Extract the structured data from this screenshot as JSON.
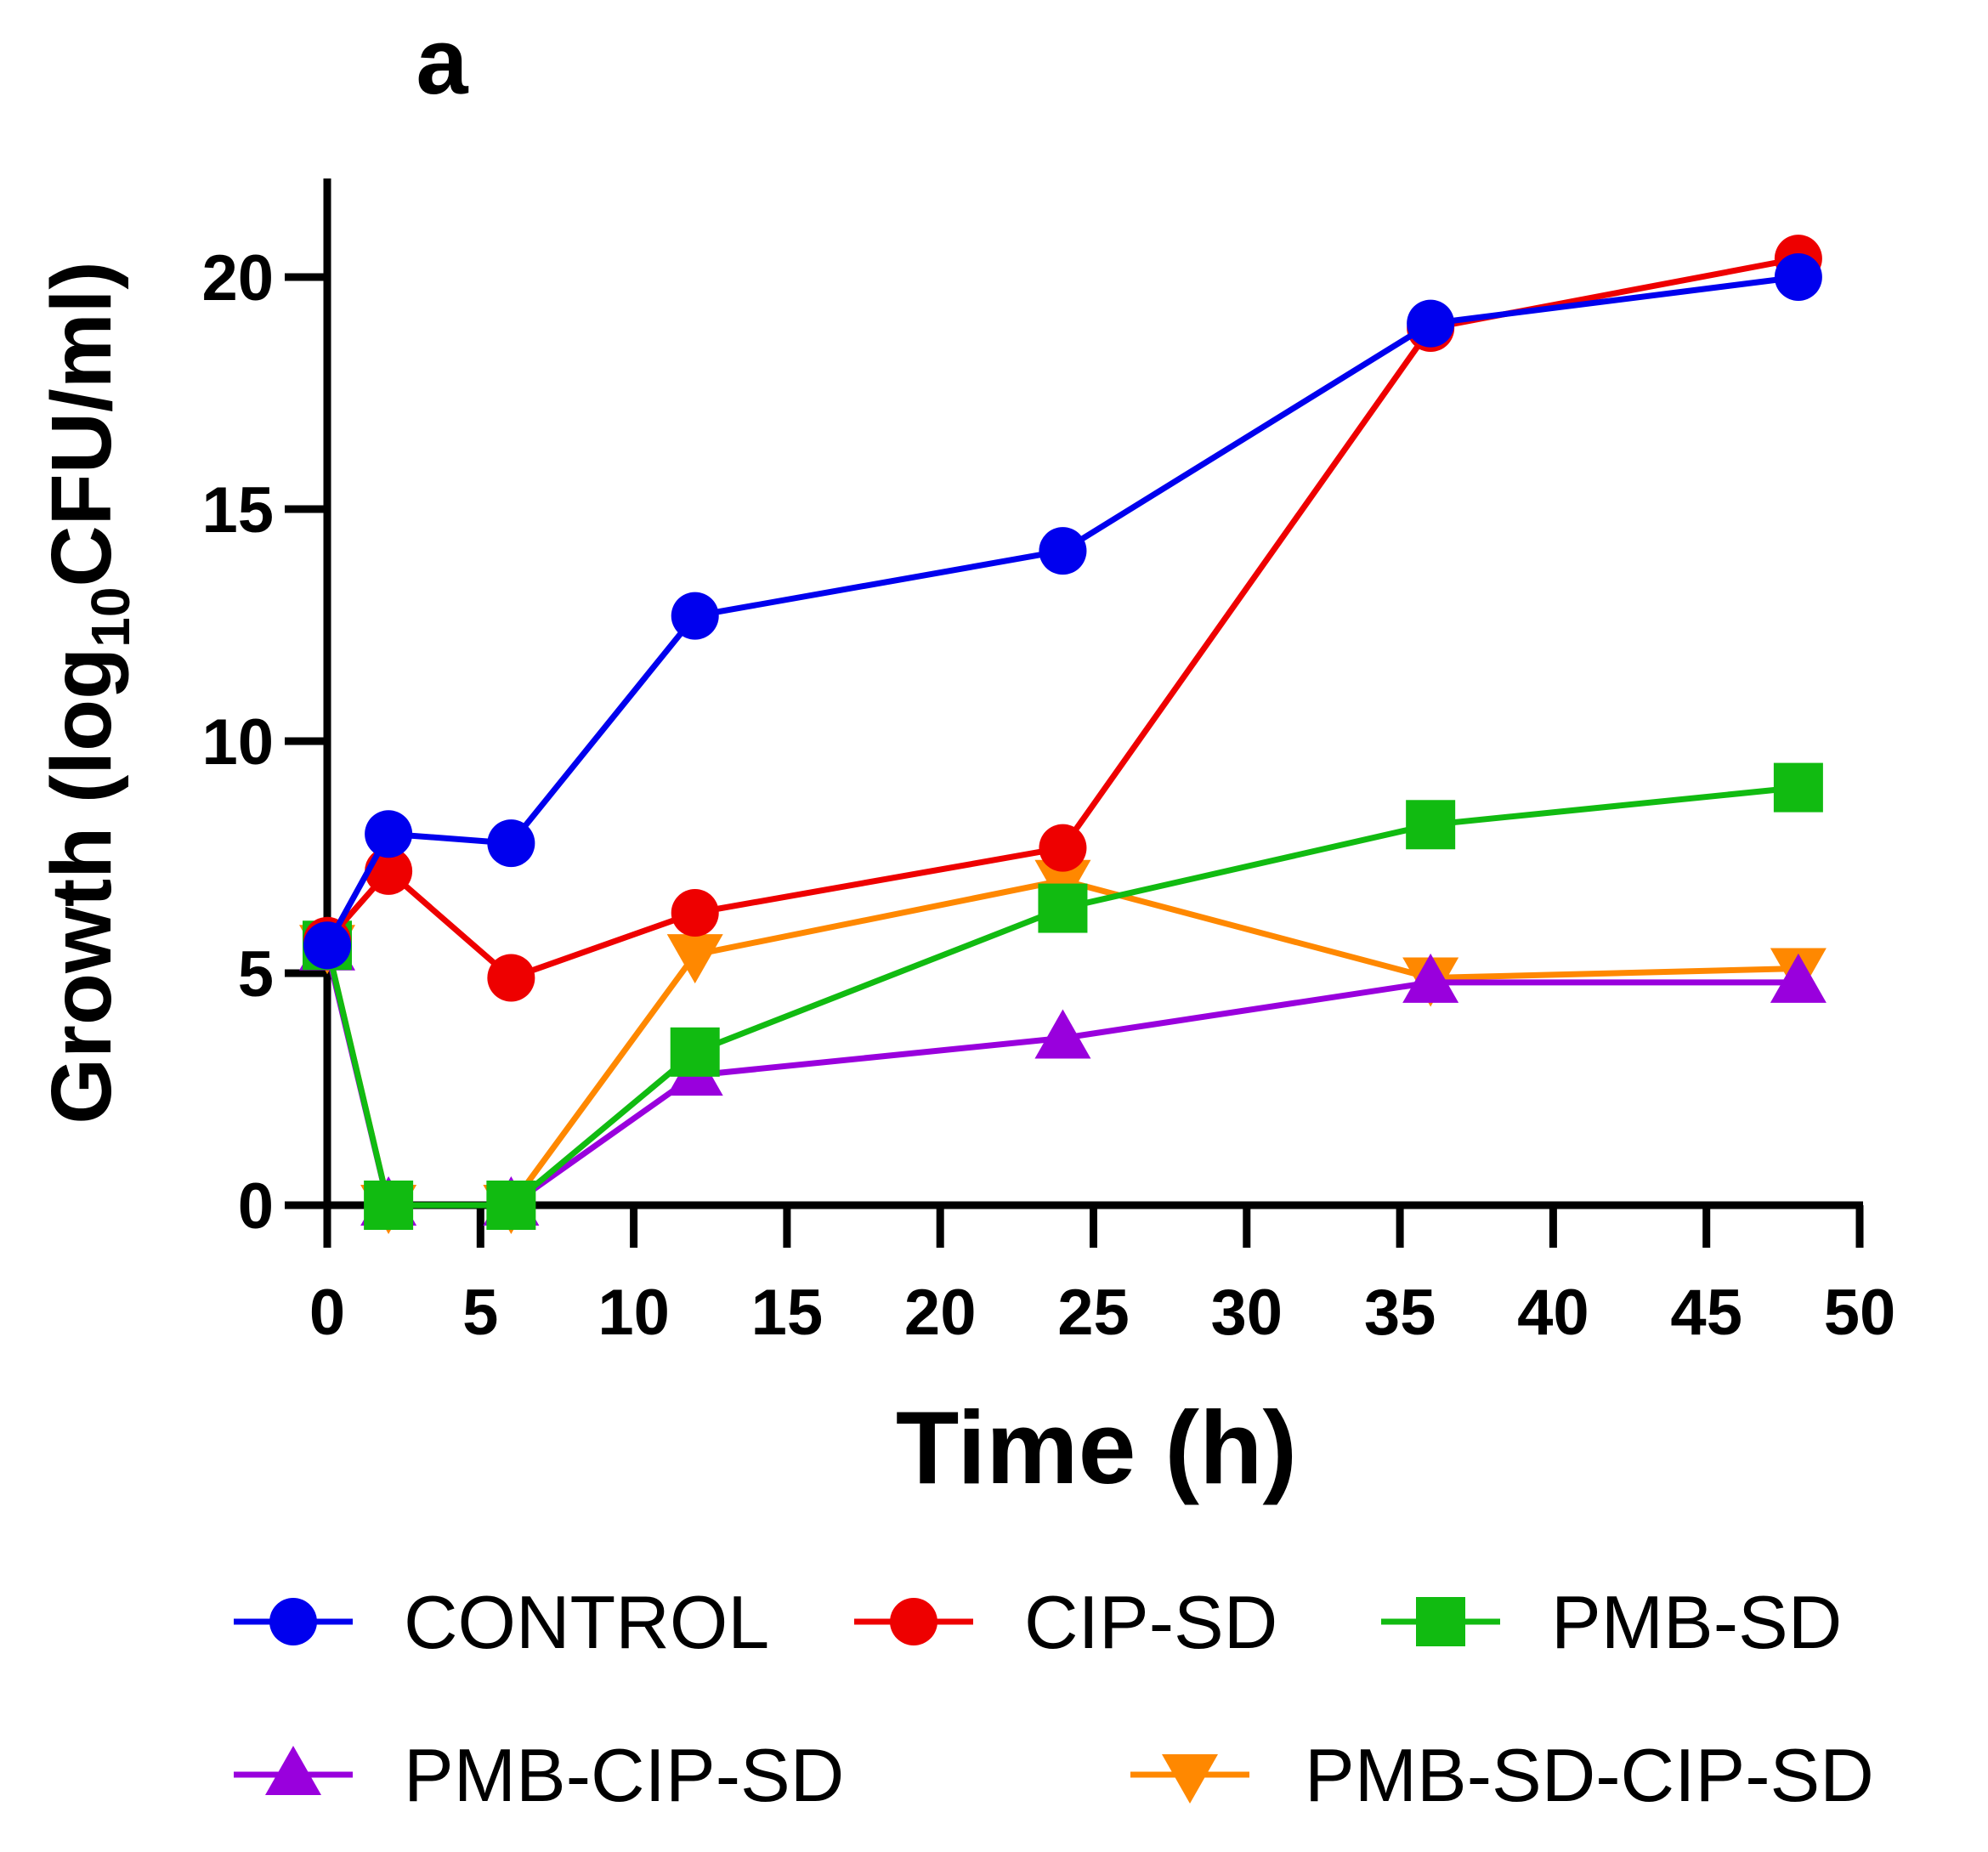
{
  "chart_data": {
    "type": "line",
    "panel_label": "a",
    "xlabel": "Time (h)",
    "ylabel_prefix": "Growth (log",
    "ylabel_subscript": "10",
    "ylabel_suffix": "CFU/ml)",
    "xlim": [
      0,
      50
    ],
    "ylim": [
      0,
      22
    ],
    "xticks": [
      0,
      5,
      10,
      15,
      20,
      25,
      30,
      35,
      40,
      45,
      50
    ],
    "yticks": [
      0,
      5,
      10,
      15,
      20
    ],
    "grid": false,
    "legend_position": "bottom",
    "x": [
      0,
      2,
      6,
      12,
      24,
      36,
      48
    ],
    "series": [
      {
        "name": "CONTROL",
        "color": "#0000ee",
        "marker": "circle",
        "values": [
          5.6,
          8.0,
          7.8,
          12.7,
          14.1,
          19.0,
          20.0
        ]
      },
      {
        "name": "CIP-SD",
        "color": "#ee0000",
        "marker": "circle",
        "values": [
          5.7,
          7.2,
          4.9,
          6.3,
          7.7,
          18.9,
          20.4
        ]
      },
      {
        "name": "PMB-SD",
        "color": "#11bb11",
        "marker": "square",
        "values": [
          5.6,
          0,
          0,
          3.3,
          6.4,
          8.2,
          9.0
        ]
      },
      {
        "name": "PMB-CIP-SD",
        "color": "#9900dd",
        "marker": "triangle-up",
        "values": [
          5.5,
          0,
          0,
          2.8,
          3.6,
          4.8,
          4.8
        ]
      },
      {
        "name": "PMB-SD-CIP-SD",
        "color": "#ff8800",
        "marker": "triangle-down",
        "values": [
          5.6,
          0,
          0,
          5.4,
          7.0,
          4.9,
          5.1
        ]
      }
    ],
    "draw_order": [
      4,
      3,
      2,
      1,
      0
    ]
  }
}
